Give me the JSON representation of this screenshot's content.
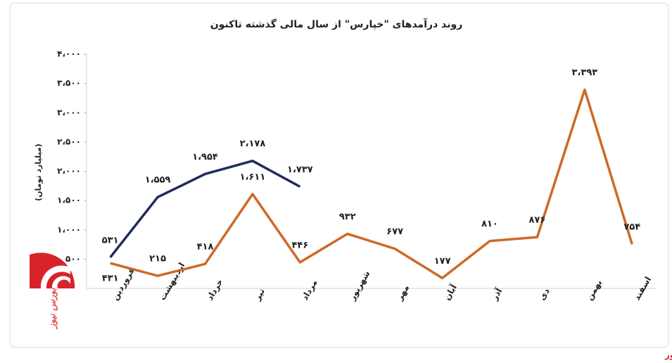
{
  "chart_data": {
    "type": "line",
    "title": "روند درآمدهای \"خپارس\" از سال مالی گذشته تاکنون",
    "y_label": "(میلیارد تومان)",
    "categories": [
      "فروردین",
      "اردیبهشت",
      "خرداد",
      "تیر",
      "مرداد",
      "شهریور",
      "مهر",
      "آبان",
      "آذر",
      "دی",
      "بهمن",
      "اسفند"
    ],
    "series": [
      {
        "color": "#1f2d5c",
        "values": [
          531,
          1559,
          1954,
          2178,
          1737,
          null,
          null,
          null,
          null,
          null,
          null,
          null
        ],
        "value_labels": [
          "۵۳۱",
          "۱،۵۵۹",
          "۱،۹۵۴",
          "۲،۱۷۸",
          "۱،۷۳۷",
          null,
          null,
          null,
          null,
          null,
          null,
          null
        ]
      },
      {
        "color": "#cc6a28",
        "values": [
          431,
          215,
          418,
          1611,
          446,
          932,
          677,
          177,
          810,
          876,
          3393,
          754
        ],
        "value_labels": [
          "۴۳۱",
          "۲۱۵",
          "۴۱۸",
          "۱،۶۱۱",
          "۴۴۶",
          "۹۳۲",
          "۶۷۷",
          "۱۷۷",
          "۸۱۰",
          "۸۷۶",
          "۳،۳۹۳",
          "۷۵۴"
        ]
      }
    ],
    "ylim": [
      0,
      4000
    ],
    "yticks": [
      {
        "value": 500,
        "label": "۵۰۰"
      },
      {
        "value": 1000,
        "label": "۱،۰۰۰"
      },
      {
        "value": 1500,
        "label": "۱،۵۰۰"
      },
      {
        "value": 2000,
        "label": "۲،۰۰۰"
      },
      {
        "value": 2500,
        "label": "۲،۵۰۰"
      },
      {
        "value": 3000,
        "label": "۳،۰۰۰"
      },
      {
        "value": 3500,
        "label": "۳،۵۰۰"
      },
      {
        "value": 4000,
        "label": "۴،۰۰۰"
      }
    ],
    "grid": false
  },
  "logo_text": "بورس نیوز",
  "footer": "بورس نیوز"
}
